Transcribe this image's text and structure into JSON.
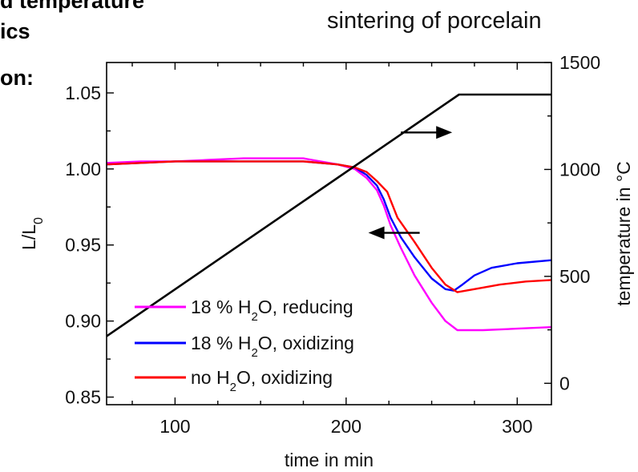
{
  "header": {
    "fragment_line_1": "d temperature",
    "fragment_line_2": "ics",
    "fragment_line_3": "on:"
  },
  "chart_data": {
    "type": "line",
    "title": "sintering of porcelain",
    "xlabel": "time in min",
    "ylabel": "L/L0",
    "ylabel_main": "L/L",
    "ylabel_sub": "0",
    "y2label": "temperature in °C",
    "xlim": [
      60,
      320
    ],
    "ylim": [
      0.845,
      1.07
    ],
    "y2lim": [
      -100,
      1500
    ],
    "xticks": [
      100,
      200,
      300
    ],
    "yticks": [
      0.85,
      0.9,
      0.95,
      1.0,
      1.05
    ],
    "ytick_labels": [
      "0.85",
      "0.90",
      "0.95",
      "1.00",
      "1.05"
    ],
    "y2ticks": [
      0,
      500,
      1000,
      1500
    ],
    "grid": false,
    "legend_location": "lower-left",
    "series": [
      {
        "label_parts": [
          "18 % H",
          "2",
          "O, reducing"
        ],
        "color": "#ff00ff",
        "axis": "left",
        "x": [
          60,
          80,
          100,
          120,
          140,
          160,
          175,
          185,
          195,
          205,
          212,
          218,
          222,
          226,
          232,
          240,
          250,
          258,
          265,
          280,
          300,
          320
        ],
        "y": [
          1.004,
          1.005,
          1.005,
          1.006,
          1.007,
          1.007,
          1.007,
          1.005,
          1.003,
          1.0,
          0.994,
          0.986,
          0.976,
          0.963,
          0.948,
          0.93,
          0.912,
          0.9,
          0.894,
          0.894,
          0.895,
          0.896
        ]
      },
      {
        "label_parts": [
          "18 % H",
          "2",
          "O, oxidizing"
        ],
        "color": "#0000ff",
        "axis": "left",
        "x": [
          60,
          80,
          100,
          120,
          140,
          160,
          175,
          185,
          195,
          205,
          212,
          218,
          222,
          226,
          232,
          240,
          250,
          258,
          263,
          268,
          275,
          285,
          300,
          320
        ],
        "y": [
          1.003,
          1.004,
          1.005,
          1.005,
          1.005,
          1.005,
          1.005,
          1.004,
          1.003,
          1.001,
          0.996,
          0.989,
          0.98,
          0.968,
          0.955,
          0.942,
          0.928,
          0.921,
          0.92,
          0.924,
          0.93,
          0.935,
          0.938,
          0.94
        ]
      },
      {
        "label_parts": [
          "no  H",
          "2",
          "O, oxidizing"
        ],
        "color": "#ff0000",
        "axis": "left",
        "x": [
          60,
          80,
          100,
          120,
          140,
          160,
          175,
          185,
          195,
          205,
          212,
          218,
          224,
          230,
          240,
          250,
          258,
          265,
          275,
          290,
          305,
          320
        ],
        "y": [
          1.003,
          1.004,
          1.005,
          1.005,
          1.005,
          1.005,
          1.005,
          1.004,
          1.003,
          1.001,
          0.998,
          0.992,
          0.985,
          0.968,
          0.952,
          0.935,
          0.924,
          0.919,
          0.921,
          0.924,
          0.926,
          0.927
        ]
      },
      {
        "label_parts": [
          "",
          "",
          ""
        ],
        "color": "#000000",
        "axis": "right",
        "x": [
          60,
          266,
          320
        ],
        "y": [
          220,
          1350,
          1350
        ]
      }
    ],
    "annotations": [
      {
        "type": "arrow",
        "direction": "right",
        "x_from": 232,
        "x_to": 262,
        "y": 1.024,
        "y_axis": "left"
      },
      {
        "type": "arrow",
        "direction": "left",
        "x_from": 243,
        "x_to": 213,
        "y": 0.958,
        "y_axis": "left"
      }
    ]
  }
}
